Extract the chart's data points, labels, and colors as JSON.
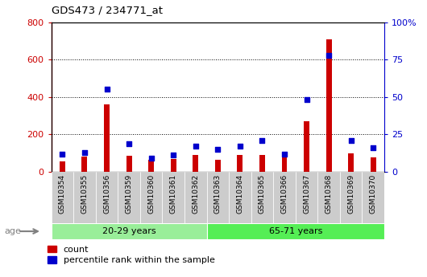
{
  "title": "GDS473 / 234771_at",
  "samples": [
    "GSM10354",
    "GSM10355",
    "GSM10356",
    "GSM10359",
    "GSM10360",
    "GSM10361",
    "GSM10362",
    "GSM10363",
    "GSM10364",
    "GSM10365",
    "GSM10366",
    "GSM10367",
    "GSM10368",
    "GSM10369",
    "GSM10370"
  ],
  "count": [
    55,
    80,
    360,
    85,
    65,
    70,
    90,
    65,
    90,
    90,
    75,
    270,
    710,
    100,
    75
  ],
  "percentile": [
    12,
    13,
    55,
    19,
    9,
    11,
    17,
    15,
    17,
    21,
    12,
    48,
    78,
    21,
    16
  ],
  "groups": [
    {
      "label": "20-29 years",
      "start": 0,
      "end": 7,
      "color": "#99ee99"
    },
    {
      "label": "65-71 years",
      "start": 7,
      "end": 15,
      "color": "#55ee55"
    }
  ],
  "age_label": "age",
  "ylim_left": [
    0,
    800
  ],
  "ylim_right": [
    0,
    100
  ],
  "yticks_left": [
    0,
    200,
    400,
    600,
    800
  ],
  "yticks_right": [
    0,
    25,
    50,
    75,
    100
  ],
  "ytick_labels_right": [
    "0",
    "25",
    "50",
    "75",
    "100%"
  ],
  "bar_color": "#cc0000",
  "dot_color": "#0000cc",
  "grid_color": "#000000",
  "plot_bg_color": "#ffffff",
  "xtick_bg_color": "#cccccc",
  "legend_count_label": "count",
  "legend_pct_label": "percentile rank within the sample",
  "left_axis_color": "#cc0000",
  "right_axis_color": "#0000cc",
  "bar_width": 0.25
}
